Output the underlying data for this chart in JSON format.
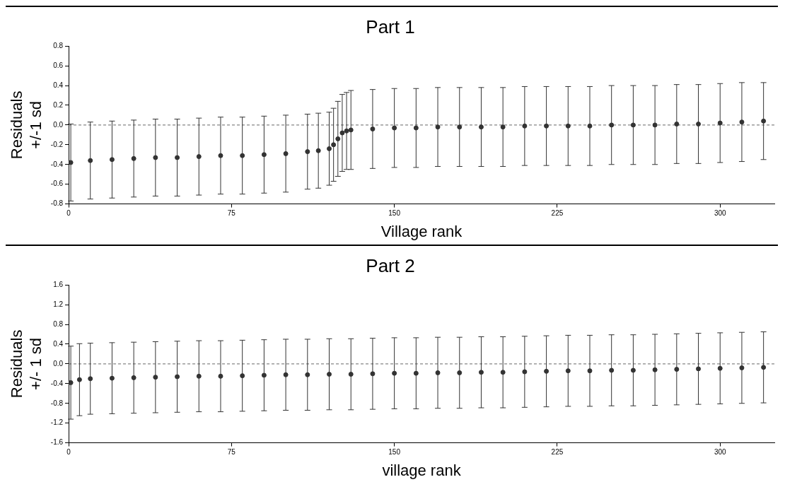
{
  "chart_data": [
    {
      "type": "scatter",
      "title": "Part 1",
      "xlabel": "Village rank",
      "ylabel": "Residuals\n+/-1 sd",
      "xlim": [
        0,
        325
      ],
      "xticks": [
        0,
        75,
        150,
        225,
        300
      ],
      "ylim": [
        -0.8,
        0.8
      ],
      "yticks": [
        -0.8,
        -0.6,
        -0.4,
        -0.2,
        {
          "value": 0,
          "label": "0.0"
        },
        0.2,
        0.4,
        0.6,
        0.8
      ],
      "marker": "circle",
      "ref_lines": [
        {
          "axis": "y",
          "value": 0,
          "line_style": "dashed",
          "color": "#666666"
        }
      ],
      "x": [
        1,
        10,
        20,
        30,
        40,
        50,
        60,
        70,
        80,
        90,
        100,
        110,
        115,
        120,
        122,
        124,
        126,
        128,
        130,
        140,
        150,
        160,
        170,
        180,
        190,
        200,
        210,
        220,
        230,
        240,
        250,
        260,
        270,
        280,
        290,
        300,
        310,
        320
      ],
      "series": [
        {
          "color": "#333333",
          "values": [
            -0.38,
            -0.36,
            -0.35,
            -0.34,
            -0.33,
            -0.33,
            -0.32,
            -0.31,
            -0.31,
            -0.3,
            -0.29,
            -0.27,
            -0.26,
            -0.24,
            -0.2,
            -0.14,
            -0.08,
            -0.06,
            -0.05,
            -0.04,
            -0.03,
            -0.03,
            -0.02,
            -0.02,
            -0.02,
            -0.02,
            -0.01,
            -0.01,
            -0.01,
            -0.01,
            0,
            0,
            0,
            0.01,
            0.01,
            0.02,
            0.03,
            0.04
          ],
          "errors": [
            0.39,
            0.39,
            0.39,
            0.39,
            0.39,
            0.39,
            0.39,
            0.39,
            0.39,
            0.39,
            0.39,
            0.38,
            0.38,
            0.37,
            0.37,
            0.38,
            0.39,
            0.39,
            0.4,
            0.4,
            0.4,
            0.4,
            0.4,
            0.4,
            0.4,
            0.4,
            0.4,
            0.4,
            0.4,
            0.4,
            0.4,
            0.4,
            0.4,
            0.4,
            0.4,
            0.4,
            0.4,
            0.39
          ]
        }
      ]
    },
    {
      "type": "scatter",
      "title": "Part 2",
      "xlabel": "village rank",
      "ylabel": "Residuals\n+/- 1 sd",
      "xlim": [
        0,
        325
      ],
      "xticks": [
        0,
        75,
        150,
        225,
        300
      ],
      "ylim": [
        -1.6,
        1.6
      ],
      "yticks": [
        -1.6,
        -1.2,
        -0.8,
        -0.4,
        {
          "value": 0,
          "label": "0.0"
        },
        0.4,
        0.8,
        1.2,
        1.6
      ],
      "marker": "circle",
      "ref_lines": [
        {
          "axis": "y",
          "value": 0,
          "line_style": "dashed",
          "color": "#666666"
        }
      ],
      "x": [
        1,
        5,
        10,
        20,
        30,
        40,
        50,
        60,
        70,
        80,
        90,
        100,
        110,
        120,
        130,
        140,
        150,
        160,
        170,
        180,
        190,
        200,
        210,
        220,
        230,
        240,
        250,
        260,
        270,
        280,
        290,
        300,
        310,
        320
      ],
      "series": [
        {
          "color": "#333333",
          "values": [
            -0.38,
            -0.32,
            -0.3,
            -0.29,
            -0.28,
            -0.27,
            -0.26,
            -0.25,
            -0.25,
            -0.24,
            -0.23,
            -0.22,
            -0.22,
            -0.21,
            -0.21,
            -0.2,
            -0.19,
            -0.19,
            -0.18,
            -0.18,
            -0.17,
            -0.17,
            -0.16,
            -0.15,
            -0.14,
            -0.14,
            -0.13,
            -0.13,
            -0.12,
            -0.11,
            -0.1,
            -0.09,
            -0.08,
            -0.07
          ],
          "errors": [
            0.74,
            0.73,
            0.72,
            0.72,
            0.72,
            0.72,
            0.72,
            0.72,
            0.72,
            0.72,
            0.72,
            0.72,
            0.72,
            0.72,
            0.72,
            0.72,
            0.72,
            0.72,
            0.72,
            0.72,
            0.72,
            0.72,
            0.72,
            0.72,
            0.72,
            0.72,
            0.72,
            0.72,
            0.72,
            0.72,
            0.72,
            0.72,
            0.72,
            0.72
          ]
        }
      ]
    }
  ]
}
